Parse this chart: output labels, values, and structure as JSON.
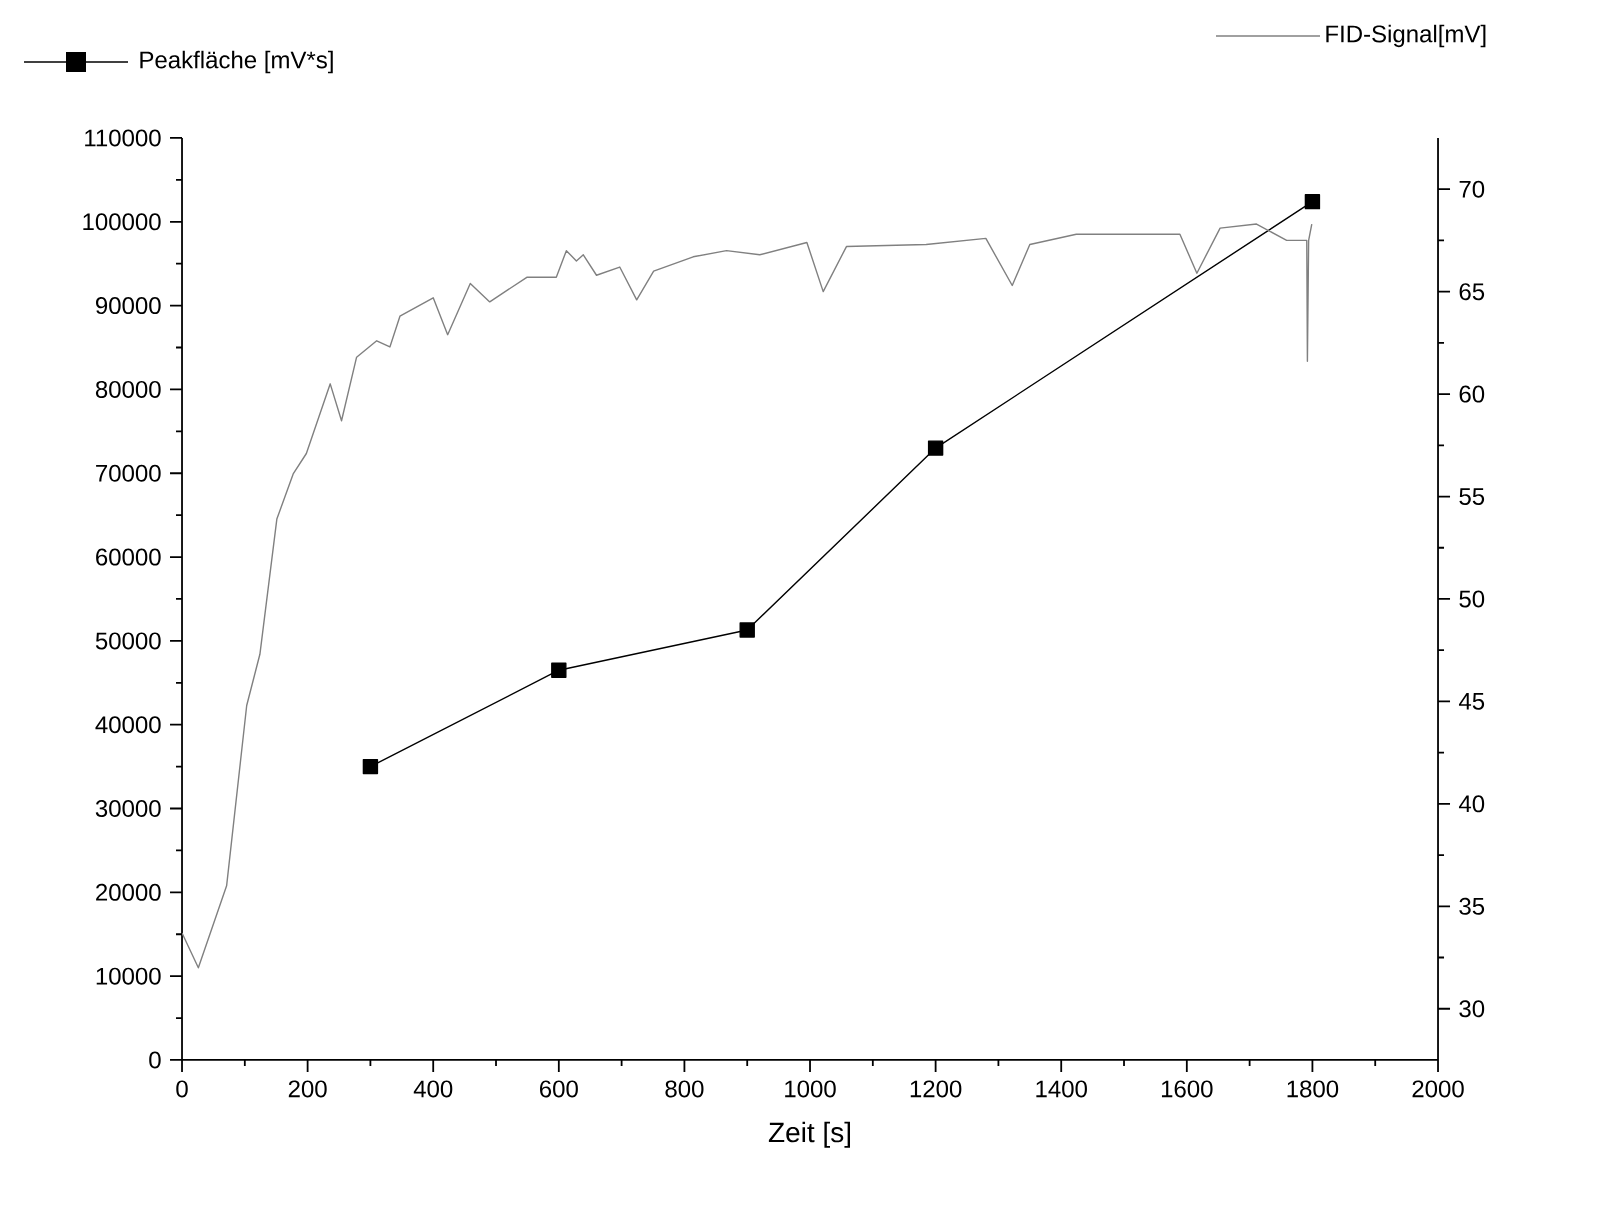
{
  "chart_data": {
    "type": "line",
    "xlabel": "Zeit [s]",
    "legend": "top",
    "grid": false,
    "xlim": [
      0,
      2000
    ],
    "xticks": [
      0,
      200,
      400,
      600,
      800,
      1000,
      1200,
      1400,
      1600,
      1800,
      2000
    ],
    "ylim": [
      0,
      110000
    ],
    "yticks": [
      0,
      10000,
      20000,
      30000,
      40000,
      50000,
      60000,
      70000,
      80000,
      90000,
      100000,
      110000
    ],
    "y2lim": [
      27.5,
      72.5
    ],
    "y2ticks": [
      30,
      35,
      40,
      45,
      50,
      55,
      60,
      65,
      70
    ],
    "series": [
      {
        "name": "Peakfläche [mV*s]",
        "color": "#000000",
        "marker": "square",
        "x": [
          300,
          600,
          900,
          1200,
          1800
        ],
        "values": [
          35000,
          46500,
          51300,
          73000,
          102400
        ]
      },
      {
        "name": "FID-Signal[mV]",
        "color": "#808080",
        "marker": "none",
        "axis": "y2",
        "x": [
          0,
          26,
          71,
          103,
          124,
          151,
          177,
          198,
          236,
          254,
          278,
          310,
          331,
          347,
          400,
          423,
          459,
          490,
          549,
          596,
          612,
          628,
          639,
          660,
          697,
          724,
          751,
          814,
          867,
          920,
          995,
          1021,
          1058,
          1185,
          1280,
          1322,
          1350,
          1424,
          1589,
          1616,
          1653,
          1711,
          1759,
          1791,
          1792,
          1794,
          1799
        ],
        "values": [
          33.7,
          32.0,
          36.0,
          44.8,
          47.3,
          53.9,
          56.1,
          57.1,
          60.5,
          58.7,
          61.8,
          62.6,
          62.3,
          63.8,
          64.7,
          62.9,
          65.4,
          64.5,
          65.7,
          65.7,
          67.0,
          66.5,
          66.8,
          65.8,
          66.2,
          64.6,
          66.0,
          66.7,
          67.0,
          66.8,
          67.4,
          65.0,
          67.2,
          67.3,
          67.6,
          65.3,
          67.3,
          67.8,
          67.8,
          65.9,
          68.1,
          68.3,
          67.5,
          67.5,
          61.6,
          67.5,
          68.3
        ]
      }
    ]
  }
}
